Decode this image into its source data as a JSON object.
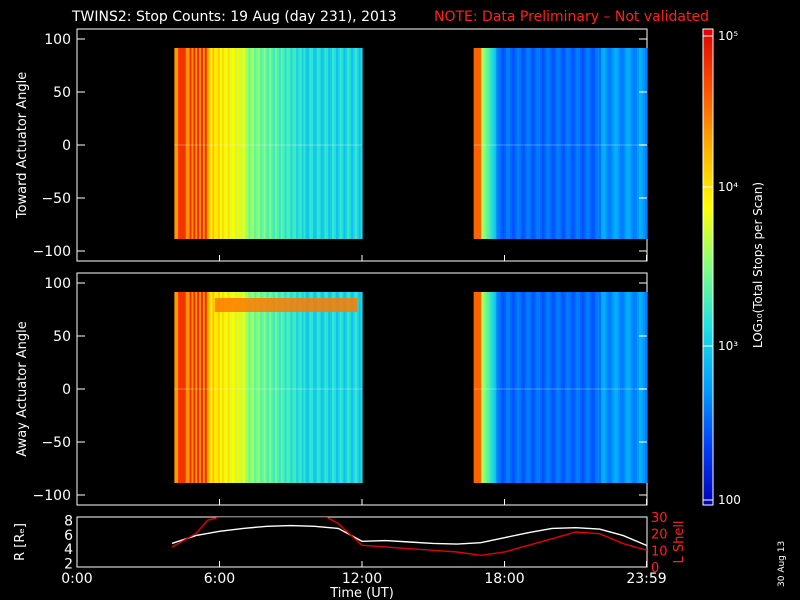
{
  "title": {
    "main": "TWINS2: Stop Counts: 19 Aug (day 231), 2013",
    "note": "NOTE: Data Preliminary – Not validated"
  },
  "date_stamp": "30 Aug 13",
  "x_axis": {
    "label": "Time (UT)",
    "ticks": [
      "0:00",
      "6:00",
      "12:00",
      "18:00",
      "23:59"
    ]
  },
  "colorbar": {
    "label": "LOG₁₀(Total Stops per Scan)",
    "ticks": [
      "10⁵",
      "10⁴",
      "10³",
      "100"
    ],
    "colors": [
      "#0000b4",
      "#0040ff",
      "#00a0ff",
      "#20e0e0",
      "#80ff80",
      "#ffff00",
      "#ffb000",
      "#ff5000",
      "#e00000"
    ]
  },
  "colors": {
    "background": "#000000",
    "text": "#ffffff",
    "note": "#ff2020",
    "l_shell": "#e00000",
    "radius": "#ffffff"
  },
  "chart_data": [
    {
      "type": "heatmap",
      "panel": "toward",
      "ylabel": "Toward Actuator Angle",
      "ylim": [
        -100,
        100
      ],
      "yticks": [
        "100",
        "50",
        "0",
        "−50",
        "−100"
      ],
      "xlim_hours": [
        0,
        24
      ],
      "data_gaps_hours": [
        [
          0,
          4.1
        ],
        [
          12.0,
          16.7
        ]
      ],
      "description_note": null
    },
    {
      "type": "heatmap",
      "panel": "away",
      "ylabel": "Away Actuator Angle",
      "ylim": [
        -100,
        100
      ],
      "yticks": [
        "100",
        "50",
        "0",
        "−50",
        "−100"
      ],
      "xlim_hours": [
        0,
        24
      ],
      "data_gaps_hours": [
        [
          0,
          4.1
        ],
        [
          12.0,
          16.7
        ]
      ]
    },
    {
      "type": "line",
      "panel": "orbit",
      "ylabel_left": "R [Rₑ]",
      "ylabel_right": "L Shell",
      "yticks_left": [
        "8",
        "6",
        "4",
        "2"
      ],
      "yticks_right": [
        "30",
        "20",
        "10",
        "0"
      ],
      "ylim_left": [
        1.5,
        8.5
      ],
      "ylim_right": [
        0,
        30
      ],
      "series": [
        {
          "name": "R [Rₑ]",
          "x": [
            4.0,
            5.0,
            6.0,
            7.0,
            8.0,
            9.0,
            10.0,
            11.0,
            12.0,
            13.0,
            14.0,
            15.0,
            16.0,
            17.0,
            18.0,
            19.0,
            20.0,
            21.0,
            22.0,
            23.0,
            24.0
          ],
          "y": [
            4.8,
            5.9,
            6.5,
            6.9,
            7.2,
            7.3,
            7.2,
            6.9,
            5.1,
            5.2,
            5.0,
            4.8,
            4.7,
            4.9,
            5.6,
            6.3,
            6.9,
            7.0,
            6.8,
            5.9,
            4.5
          ]
        },
        {
          "name": "L Shell",
          "x": [
            4.0,
            5.0,
            5.5,
            6.0,
            10.5,
            11.0,
            12.0,
            13.0,
            14.0,
            15.0,
            16.0,
            17.0,
            18.0,
            19.0,
            20.0,
            21.0,
            22.0,
            23.0,
            24.0
          ],
          "y": [
            12,
            20,
            28,
            30,
            30,
            26,
            13,
            12,
            11,
            10,
            9,
            7,
            9,
            13,
            17,
            21,
            20,
            14,
            10
          ]
        }
      ]
    }
  ]
}
